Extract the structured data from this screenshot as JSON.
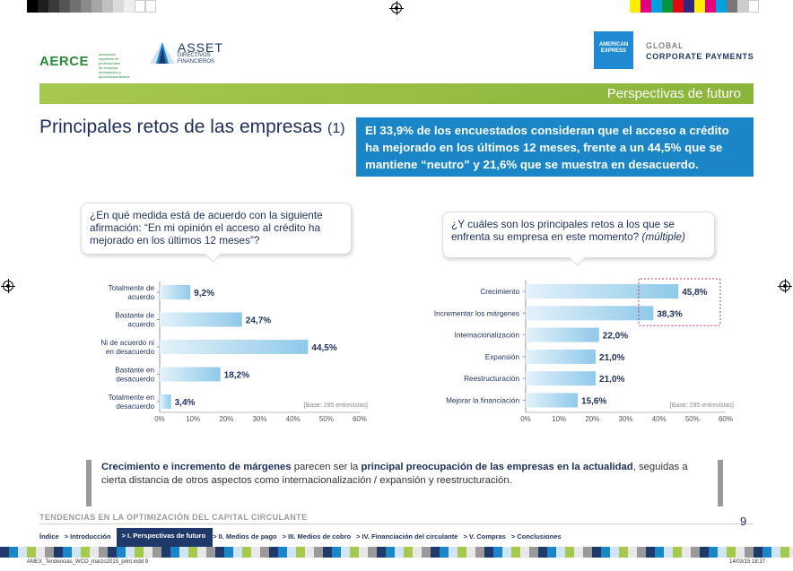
{
  "header": {
    "aerce": {
      "name": "AERCE",
      "subtitle": "asociación española de profesionales de compras, contratación y aprovisionamientos"
    },
    "asset": {
      "name": "ASSET",
      "subtitle1": "DIRECTIVOS",
      "subtitle2": "FINANCIEROS"
    },
    "amex": {
      "logo_line1": "AMERICAN",
      "logo_line2": "EXPRESS",
      "label1": "GLOBAL",
      "label2": "CORPORATE PAYMENTS"
    }
  },
  "section_label": "Perspectivas de futuro",
  "title": "Principales retos de las empresas",
  "title_suffix": "(1)",
  "callout": "El 33,9% de los encuestados consideran que el acceso a crédito ha mejorado en los últimos 12 meses, frente a un 44,5% que se mantiene “neutro” y 21,6% que se muestra en desacuerdo.",
  "question1": "¿En qué medida está de acuerdo con la siguiente afirmación: “En mi opinión el acceso al crédito ha mejorado en los últimos 12 meses”?",
  "question2_main": "¿Y cuáles son los principales retos a los que se enfrenta su empresa en este momento?",
  "question2_tag": "(múltiple)",
  "chart_data": [
    {
      "type": "bar",
      "orientation": "horizontal",
      "categories": [
        "Totalmente de acuerdo",
        "Bastante de acuerdo",
        "Ni de acuerdo ni en desacuerdo",
        "Bastante en desacuerdo",
        "Totalmente en desacuerdo"
      ],
      "values": [
        9.2,
        24.7,
        44.5,
        18.2,
        3.4
      ],
      "value_labels": [
        "9,2%",
        "24,7%",
        "44,5%",
        "18,2%",
        "3,4%"
      ],
      "xlim": [
        0,
        60
      ],
      "xticks": [
        "0%",
        "10%",
        "20%",
        "30%",
        "40%",
        "50%",
        "60%"
      ],
      "base_note": "[Base: 295 entrevistas]"
    },
    {
      "type": "bar",
      "orientation": "horizontal",
      "categories": [
        "Crecimiento",
        "Incrementar los márgenes",
        "Internacionalización",
        "Expansión",
        "Reestructuración",
        "Mejorar la financiación"
      ],
      "values": [
        45.8,
        38.3,
        22.0,
        21.0,
        21.0,
        15.6
      ],
      "value_labels": [
        "45,8%",
        "38,3%",
        "22,0%",
        "21,0%",
        "21,0%",
        "15,6%"
      ],
      "highlighted": [
        0,
        1
      ],
      "xlim": [
        0,
        60
      ],
      "xticks": [
        "0%",
        "10%",
        "20%",
        "30%",
        "40%",
        "50%",
        "60%"
      ],
      "base_note": "[Base: 295 entrevistas]"
    }
  ],
  "note": {
    "bold1": "Crecimiento e incremento de márgenes",
    "text1": " parecen ser la ",
    "bold2": "principal preocupación de las empresas en la actualidad",
    "text2": ", seguidas a cierta distancia de otros aspectos como internacionalización / expansión y reestructuración."
  },
  "footer": {
    "title": "TENDENCIAS EN LA OPTIMIZACIÓN DEL CAPITAL CIRCULANTE",
    "page": "9",
    "nav": [
      "Índice",
      "> Introducción",
      "> I. Perspectivas de futuro",
      "> II. Medios de pago",
      "> III. Medios de cobro",
      "> IV. Financiación del circulante",
      "> V. Compras",
      "> Conclusiones"
    ],
    "slug_left": "AMEX_Tendencias_WCO_marzo2015_print.indd 9",
    "slug_right": "14/03/15 18:37"
  },
  "colors": {
    "green": "#8ab43a",
    "blue": "#1a86c8",
    "navy": "#1f3a6a",
    "bar_start": "#e4f2fa",
    "bar_end": "#8fc9ea",
    "highlight": "#c0307a"
  }
}
